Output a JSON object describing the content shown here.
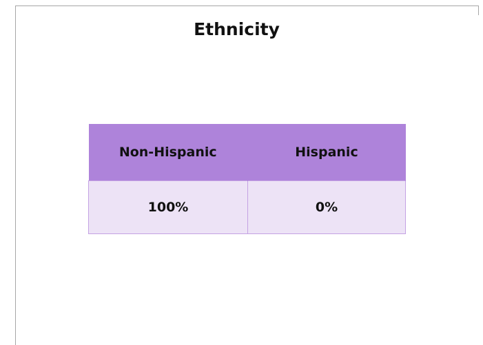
{
  "title": "Ethnicity",
  "table": {
    "headers": [
      "Non-Hispanic",
      "Hispanic"
    ],
    "rows": [
      [
        "100%",
        "0%"
      ]
    ]
  }
}
